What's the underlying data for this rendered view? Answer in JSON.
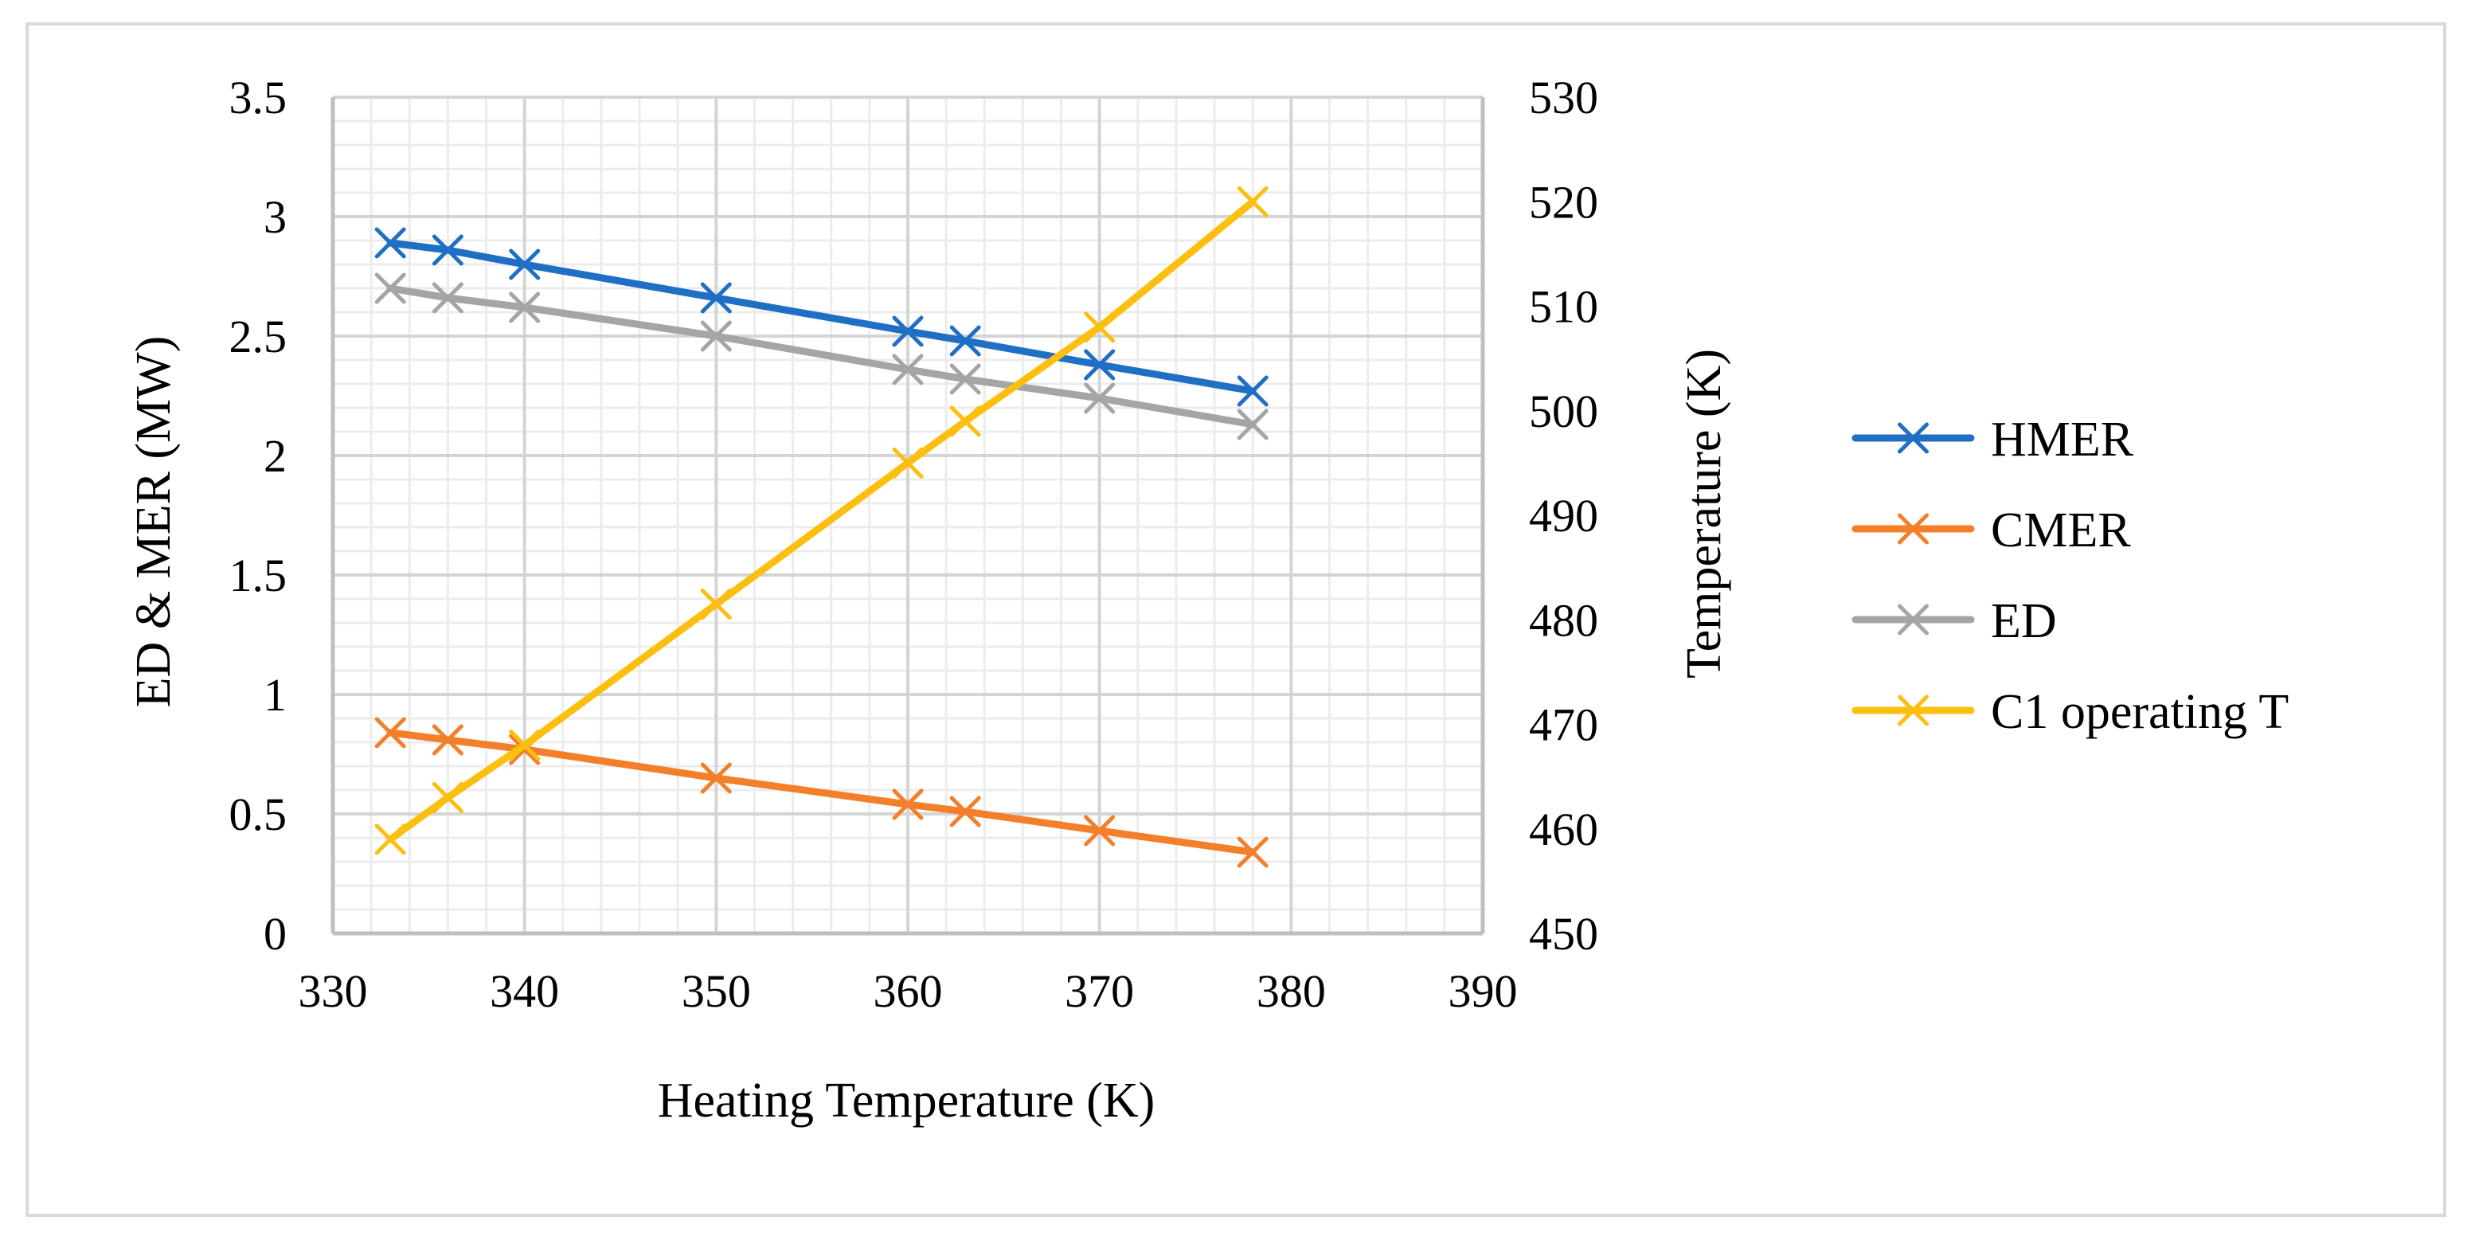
{
  "chart_data": {
    "type": "line",
    "title": "",
    "xlabel": "Heating Temperature (K)",
    "ylabel": "ED & MER (MW)",
    "y2label": "Temperature (K)",
    "xlim": [
      330,
      390
    ],
    "ylim": [
      0,
      3.5
    ],
    "y2lim": [
      450,
      530
    ],
    "x_ticks": [
      "330",
      "340",
      "350",
      "360",
      "370",
      "380",
      "390"
    ],
    "y_ticks": [
      "0",
      "0.5",
      "1",
      "1.5",
      "2",
      "2.5",
      "3",
      "3.5"
    ],
    "y2_ticks": [
      "450",
      "460",
      "470",
      "480",
      "490",
      "500",
      "510",
      "520",
      "530"
    ],
    "grid": true,
    "legend_position": "right",
    "x": [
      333,
      336,
      340,
      350,
      360,
      363,
      370,
      378
    ],
    "series": [
      {
        "name": "HMER",
        "axis": "left",
        "color": "#1f6fc5",
        "values": [
          2.89,
          2.86,
          2.8,
          2.66,
          2.52,
          2.48,
          2.38,
          2.27
        ]
      },
      {
        "name": "CMER",
        "axis": "left",
        "color": "#f47f2a",
        "values": [
          0.84,
          0.81,
          0.77,
          0.65,
          0.54,
          0.51,
          0.43,
          0.34
        ]
      },
      {
        "name": "ED",
        "axis": "left",
        "color": "#a5a5a5",
        "values": [
          2.7,
          2.66,
          2.62,
          2.5,
          2.36,
          2.32,
          2.24,
          2.13
        ]
      },
      {
        "name": "C1 operating T",
        "axis": "right",
        "color": "#fdbf0f",
        "values": [
          459,
          463,
          468,
          481.5,
          495,
          499,
          508,
          520
        ]
      }
    ]
  }
}
